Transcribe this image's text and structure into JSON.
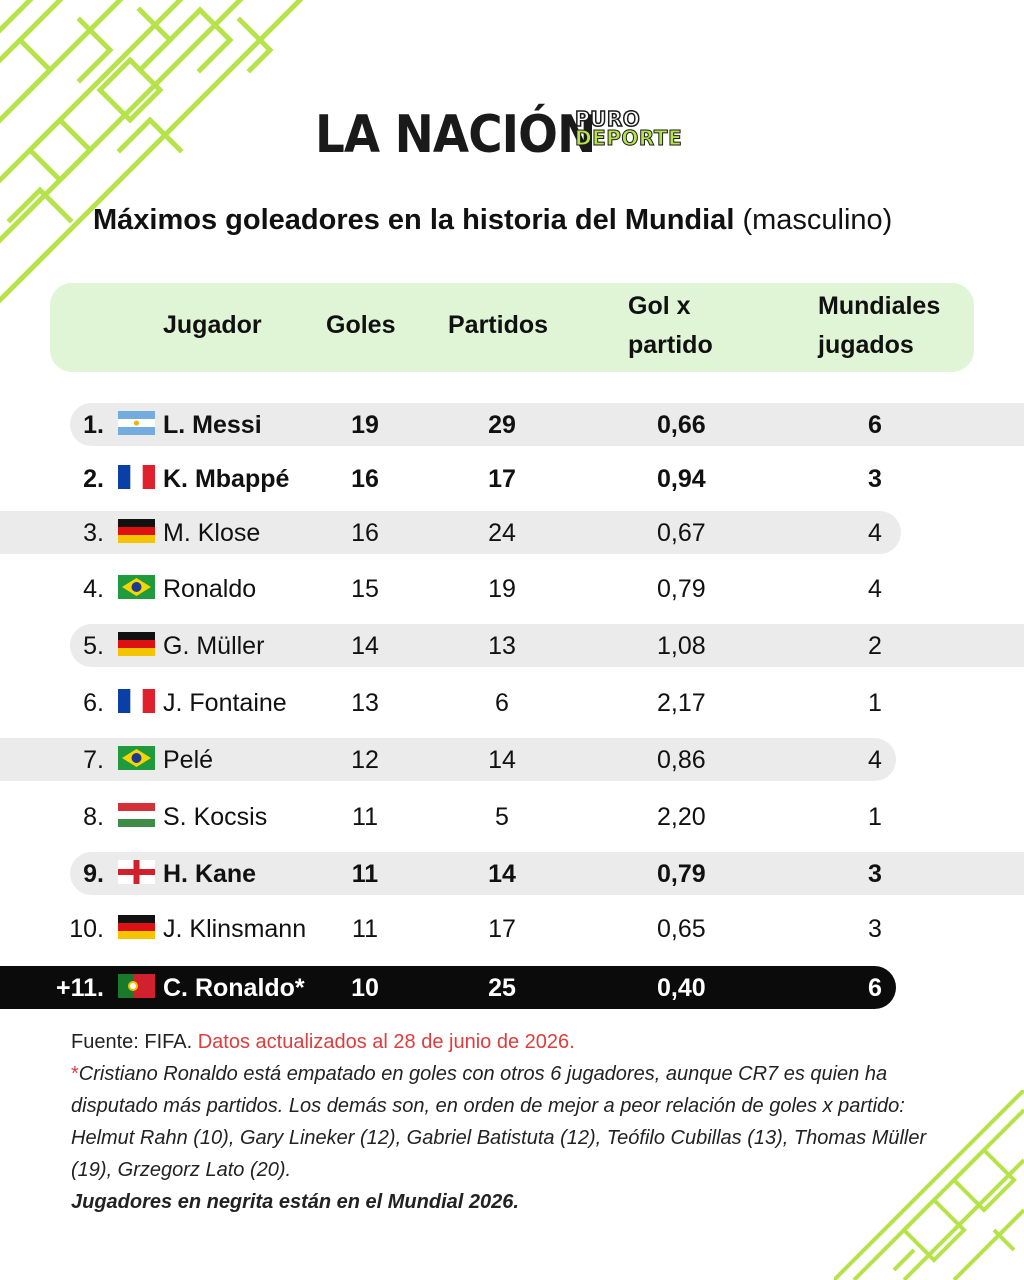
{
  "brand": {
    "name": "LA NACIÓN",
    "sub_top": "PURO",
    "sub_bottom": "DEPORTE"
  },
  "title": {
    "main": "Máximos goleadores en la historia del Mundial",
    "sub": "(masculino)"
  },
  "columns": {
    "player": "Jugador",
    "goals": "Goles",
    "matches": "Partidos",
    "ratio_l1": "Gol x",
    "ratio_l2": "partido",
    "cups_l1": "Mundiales",
    "cups_l2": "jugados"
  },
  "rows": [
    {
      "rank": "1.",
      "flag": "argentina",
      "player": "L. Messi",
      "goals": "19",
      "matches": "29",
      "ratio": "0,66",
      "cups": "6"
    },
    {
      "rank": "2.",
      "flag": "france",
      "player": "K. Mbappé",
      "goals": "16",
      "matches": "17",
      "ratio": "0,94",
      "cups": "3"
    },
    {
      "rank": "3.",
      "flag": "germany",
      "player": "M. Klose",
      "goals": "16",
      "matches": "24",
      "ratio": "0,67",
      "cups": "4"
    },
    {
      "rank": "4.",
      "flag": "brazil",
      "player": "Ronaldo",
      "goals": "15",
      "matches": "19",
      "ratio": "0,79",
      "cups": "4"
    },
    {
      "rank": "5.",
      "flag": "germany",
      "player": "G. Müller",
      "goals": "14",
      "matches": "13",
      "ratio": "1,08",
      "cups": "2"
    },
    {
      "rank": "6.",
      "flag": "france",
      "player": "J. Fontaine",
      "goals": "13",
      "matches": "6",
      "ratio": "2,17",
      "cups": "1"
    },
    {
      "rank": "7.",
      "flag": "brazil",
      "player": "Pelé",
      "goals": "12",
      "matches": "14",
      "ratio": "0,86",
      "cups": "4"
    },
    {
      "rank": "8.",
      "flag": "hungary",
      "player": "S. Kocsis",
      "goals": "11",
      "matches": "5",
      "ratio": "2,20",
      "cups": "1"
    },
    {
      "rank": "9.",
      "flag": "england",
      "player": "H. Kane",
      "goals": "11",
      "matches": "14",
      "ratio": "0,79",
      "cups": "3"
    },
    {
      "rank": "10.",
      "flag": "germany",
      "player": "J. Klinsmann",
      "goals": "11",
      "matches": "17",
      "ratio": "0,65",
      "cups": "3"
    },
    {
      "rank": "+11.",
      "flag": "portugal",
      "player": "C. Ronaldo*",
      "goals": "10",
      "matches": "25",
      "ratio": "0,40",
      "cups": "6"
    }
  ],
  "footer": {
    "source_label": "Fuente: FIFA.",
    "updated": "Datos actualizados al 28 de junio de 2026.",
    "note_star": "*",
    "note": "Cristiano Ronaldo está empatado en goles con otros 6 jugadores, aunque CR7 es quien ha disputado más partidos. Los demás son, en orden de mejor a peor relación de goles x partido: Helmut Rahn (10), Gary Lineker (12), Gabriel Batistuta (12), Teófilo Cubillas (13), Thomas Müller (19), Grzegorz Lato (20).",
    "bold_note": "Jugadores en negrita están en el Mundial 2026."
  },
  "colors": {
    "accent_green": "#b6e34a",
    "header_bg": "#dff5d6",
    "row_gray": "#ebebeb",
    "highlight_red": "#e03c3c"
  }
}
